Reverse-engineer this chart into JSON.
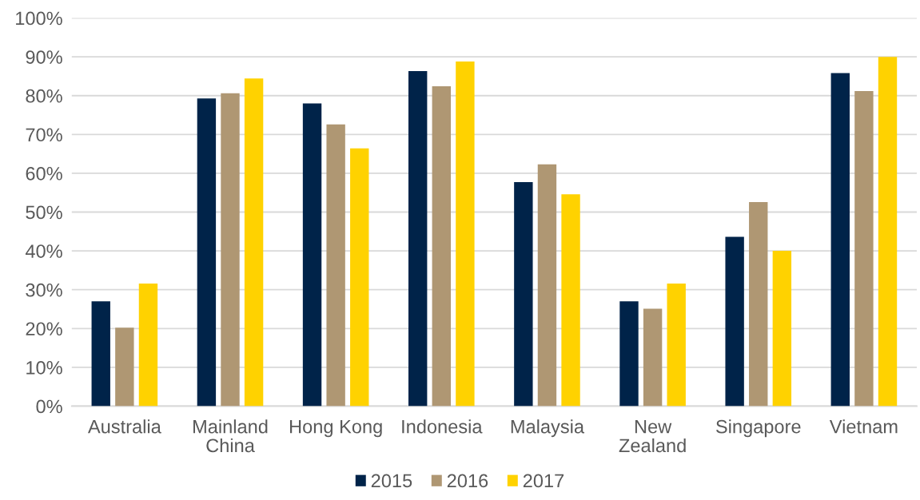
{
  "chart_data": {
    "type": "bar",
    "categories": [
      "Australia",
      "Mainland China",
      "Hong Kong",
      "Indonesia",
      "Malaysia",
      "New Zealand",
      "Singapore",
      "Vietnam"
    ],
    "series": [
      {
        "name": "2015",
        "color": "#002349",
        "values": [
          27.0,
          79.3,
          78.0,
          86.3,
          57.7,
          27.0,
          43.6,
          85.8
        ]
      },
      {
        "name": "2016",
        "color": "#af9773",
        "values": [
          20.2,
          80.6,
          72.6,
          82.4,
          62.3,
          25.1,
          52.6,
          81.2
        ]
      },
      {
        "name": "2017",
        "color": "#ffd200",
        "values": [
          31.6,
          84.4,
          66.4,
          88.8,
          54.6,
          31.6,
          40.0,
          90.0
        ]
      }
    ],
    "ylim": [
      0,
      100
    ],
    "yticks": [
      {
        "value": 0,
        "label": "0%"
      },
      {
        "value": 10,
        "label": "10%"
      },
      {
        "value": 20,
        "label": "20%"
      },
      {
        "value": 30,
        "label": "30%"
      },
      {
        "value": 40,
        "label": "40%"
      },
      {
        "value": 50,
        "label": "50%"
      },
      {
        "value": 60,
        "label": "60%"
      },
      {
        "value": 70,
        "label": "70%"
      },
      {
        "value": 80,
        "label": "80%"
      },
      {
        "value": 90,
        "label": "90%"
      },
      {
        "value": 100,
        "label": "100%"
      }
    ],
    "grid": "y",
    "legend": "bottom"
  }
}
